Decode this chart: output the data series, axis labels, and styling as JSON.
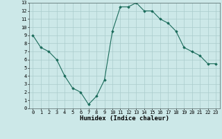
{
  "x": [
    0,
    1,
    2,
    3,
    4,
    5,
    6,
    7,
    8,
    9,
    10,
    11,
    12,
    13,
    14,
    15,
    16,
    17,
    18,
    19,
    20,
    21,
    22,
    23
  ],
  "y": [
    9.0,
    7.5,
    7.0,
    6.0,
    4.0,
    2.5,
    2.0,
    0.5,
    1.5,
    3.5,
    9.5,
    12.5,
    12.5,
    13.0,
    12.0,
    12.0,
    11.0,
    10.5,
    9.5,
    7.5,
    7.0,
    6.5,
    5.5,
    5.5
  ],
  "line_color": "#1a6b5a",
  "bg_color": "#cce8e8",
  "grid_color": "#aacccc",
  "xlabel": "Humidex (Indice chaleur)",
  "xlim": [
    -0.5,
    23.5
  ],
  "ylim": [
    0,
    13
  ],
  "yticks": [
    0,
    1,
    2,
    3,
    4,
    5,
    6,
    7,
    8,
    9,
    10,
    11,
    12,
    13
  ],
  "xticks": [
    0,
    1,
    2,
    3,
    4,
    5,
    6,
    7,
    8,
    9,
    10,
    11,
    12,
    13,
    14,
    15,
    16,
    17,
    18,
    19,
    20,
    21,
    22,
    23
  ]
}
